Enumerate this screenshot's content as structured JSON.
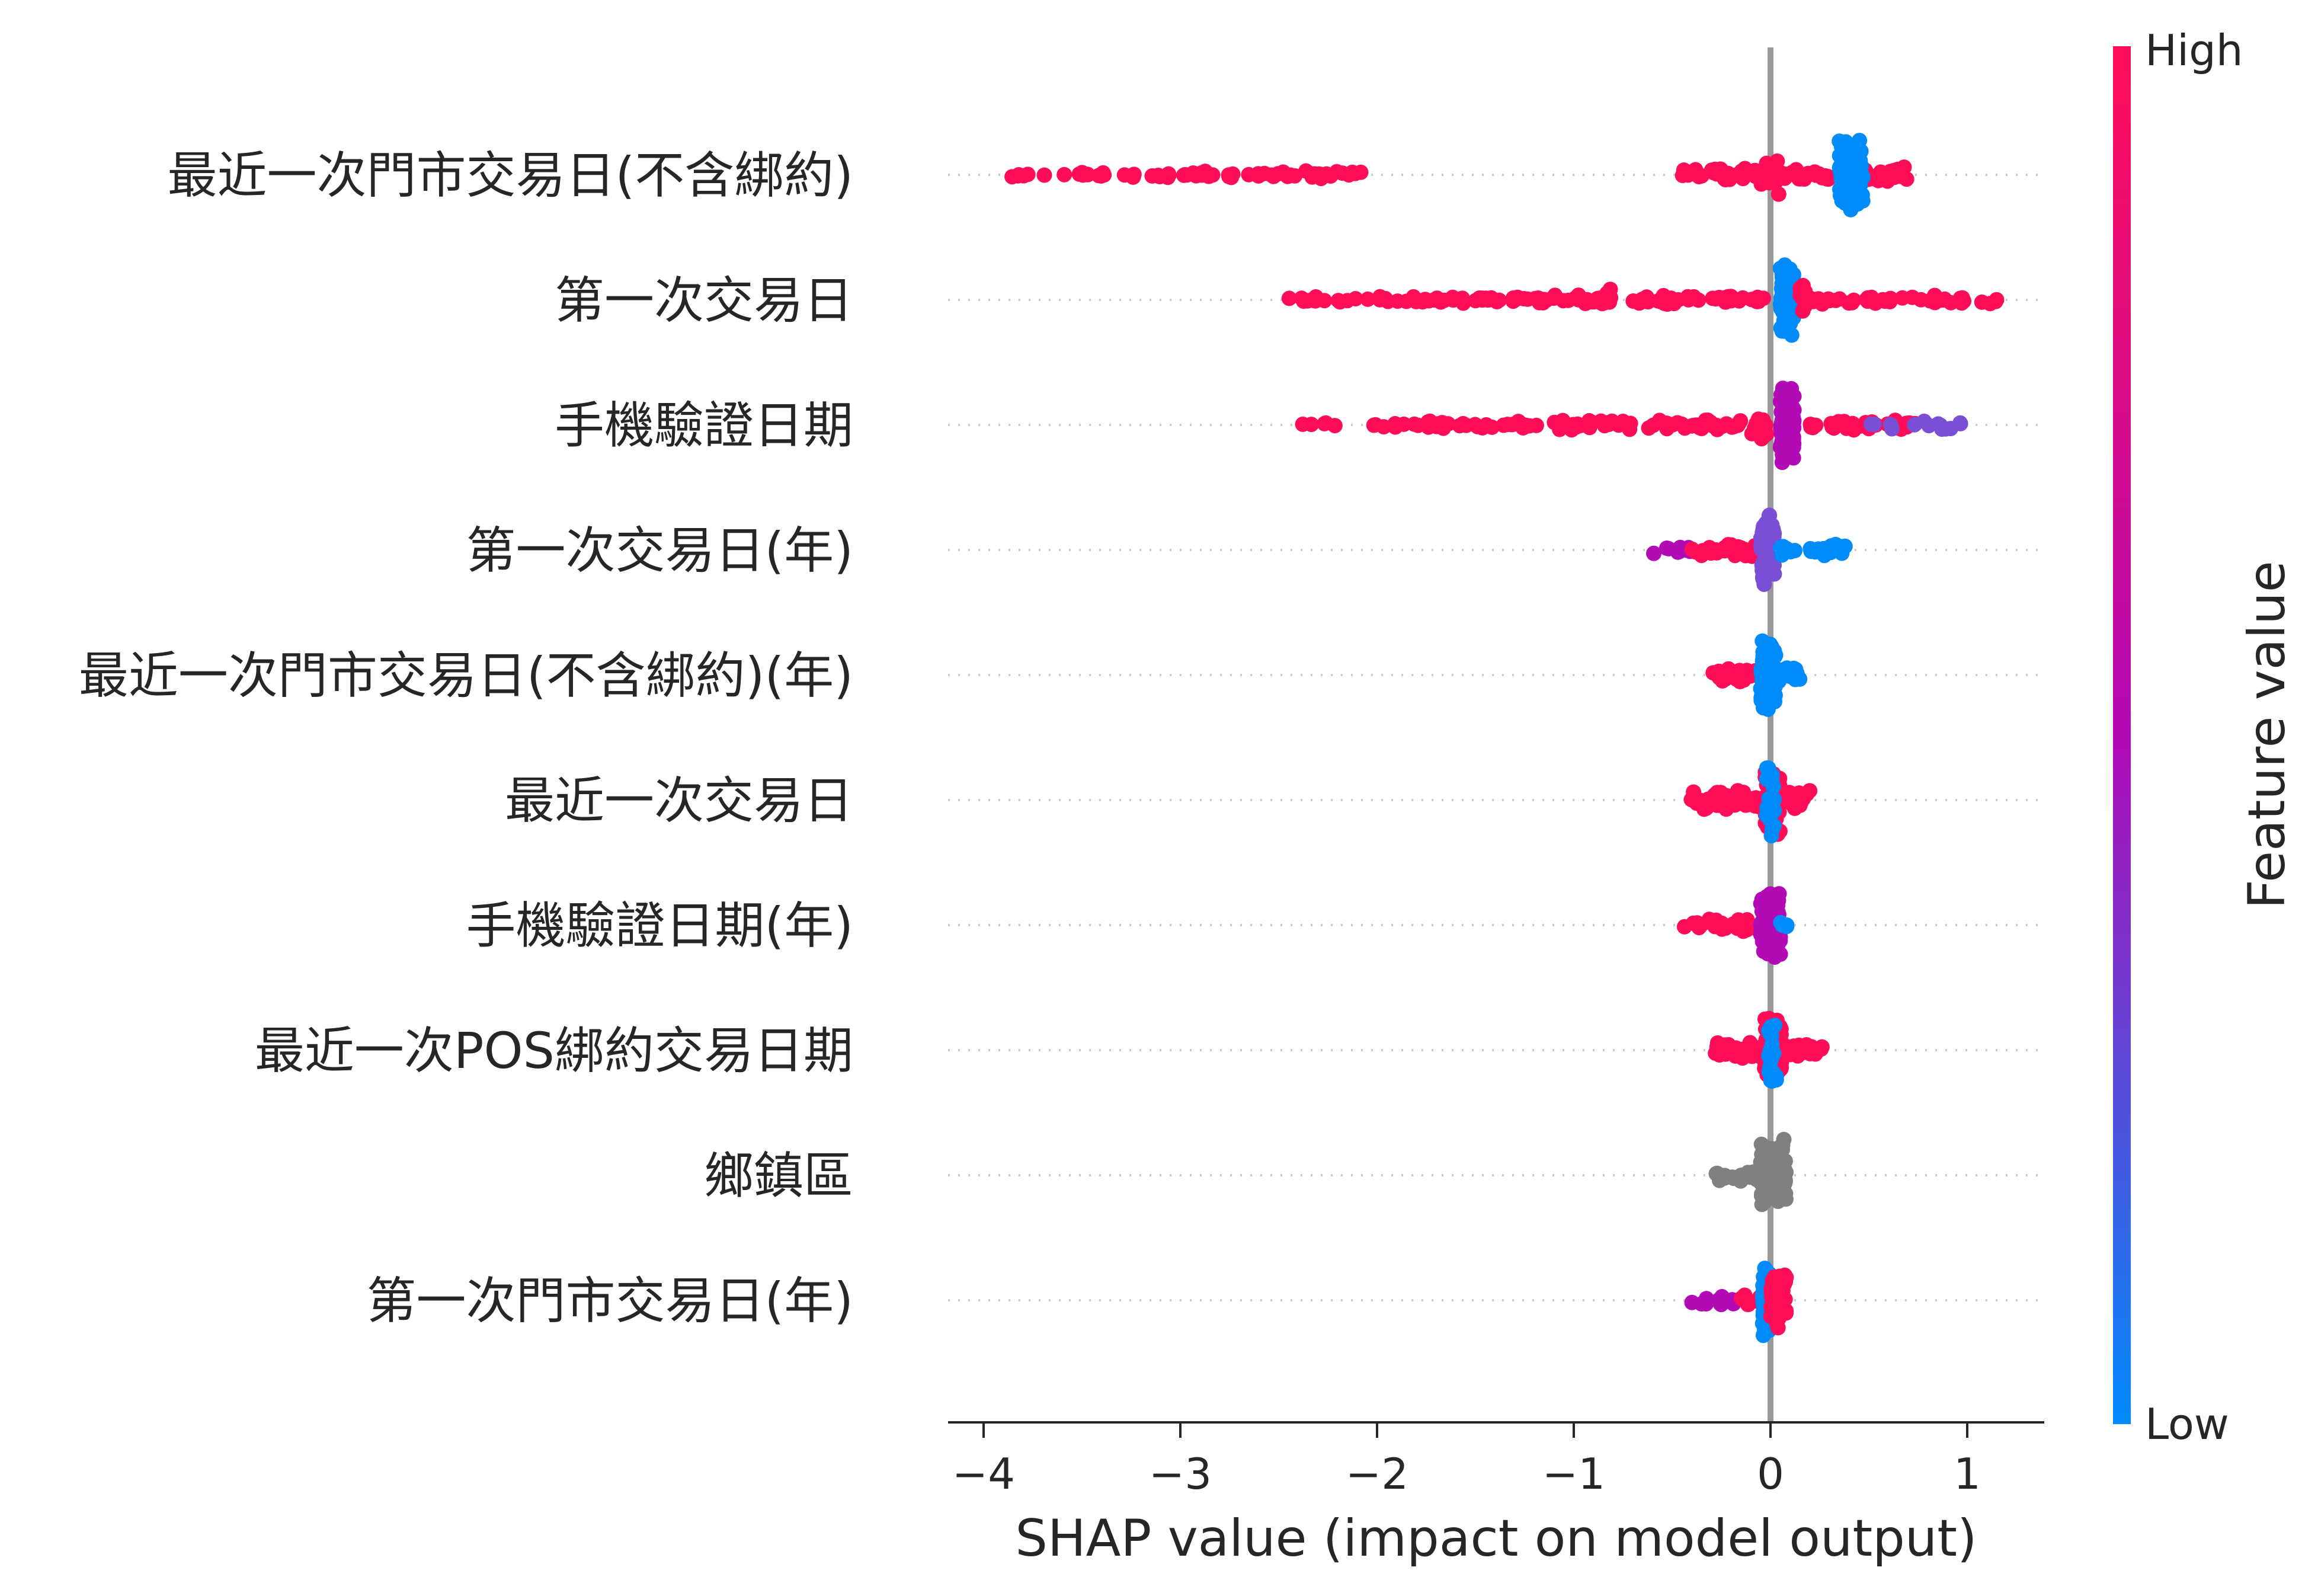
{
  "chart_data": {
    "type": "scatter",
    "subtype": "shap-beeswarm",
    "xlabel": "SHAP value (impact on model output)",
    "x_ticks": [
      -4,
      -3,
      -2,
      -1,
      0,
      1
    ],
    "x_tick_labels": [
      "−4",
      "−3",
      "−2",
      "−1",
      "0",
      "1"
    ],
    "xlim": [
      -4.2,
      1.4
    ],
    "colorbar": {
      "label": "Feature value",
      "high_label": "High",
      "low_label": "Low",
      "high_color": "#ff0d57",
      "mid_color": "#b20ab5",
      "low_color": "#008bfb"
    },
    "missing_value_color": "#808080",
    "zero_line_color": "#999999",
    "features": [
      {
        "name": "最近一次門市交易日(不含綁約)",
        "clusters": [
          {
            "x_min": -3.95,
            "x_max": -3.4,
            "count": 14,
            "color": "high",
            "spread": 0.25
          },
          {
            "x_min": -3.4,
            "x_max": -2.05,
            "count": 60,
            "color": "high",
            "spread": 0.35
          },
          {
            "x_min": -0.45,
            "x_max": 0.3,
            "count": 60,
            "color": "high",
            "spread": 0.55
          },
          {
            "x_min": -0.05,
            "x_max": 0.05,
            "count": 18,
            "color": "high",
            "spread": 1.6
          },
          {
            "x_min": 0.35,
            "x_max": 0.7,
            "count": 30,
            "color": "high",
            "spread": 0.7
          },
          {
            "x_min": 0.35,
            "x_max": 0.47,
            "count": 120,
            "color": "low",
            "spread": 2.8
          }
        ]
      },
      {
        "name": "第一次交易日",
        "clusters": [
          {
            "x_min": -2.45,
            "x_max": -1.2,
            "count": 50,
            "color": "high",
            "spread": 0.3
          },
          {
            "x_min": -1.2,
            "x_max": 0.0,
            "count": 70,
            "color": "high",
            "spread": 0.4
          },
          {
            "x_min": -0.9,
            "x_max": -0.75,
            "count": 6,
            "color": "high",
            "spread": 1.0
          },
          {
            "x_min": 0.1,
            "x_max": 1.15,
            "count": 45,
            "color": "high",
            "spread": 0.4
          },
          {
            "x_min": 0.05,
            "x_max": 0.12,
            "count": 110,
            "color": "low",
            "spread": 3.0
          },
          {
            "x_min": 0.15,
            "x_max": 0.2,
            "count": 12,
            "color": "high",
            "spread": 1.5
          }
        ]
      },
      {
        "name": "手機驗證日期",
        "clusters": [
          {
            "x_min": -2.4,
            "x_max": -1.1,
            "count": 40,
            "color": "high",
            "spread": 0.3
          },
          {
            "x_min": -1.1,
            "x_max": -0.05,
            "count": 60,
            "color": "high",
            "spread": 0.45
          },
          {
            "x_min": -0.1,
            "x_max": 0.0,
            "count": 12,
            "color": "high",
            "spread": 1.4
          },
          {
            "x_min": 0.05,
            "x_max": 0.12,
            "count": 110,
            "color": "mid",
            "spread": 3.0
          },
          {
            "x_min": 0.15,
            "x_max": 0.75,
            "count": 40,
            "color": "high",
            "spread": 0.45
          },
          {
            "x_min": 0.45,
            "x_max": 1.05,
            "count": 14,
            "color": "midlow",
            "spread": 0.35
          }
        ]
      },
      {
        "name": "第一次交易日(年)",
        "clusters": [
          {
            "x_min": -0.6,
            "x_max": -0.4,
            "count": 10,
            "color": "mid",
            "spread": 0.4
          },
          {
            "x_min": -0.4,
            "x_max": -0.05,
            "count": 30,
            "color": "high",
            "spread": 0.55
          },
          {
            "x_min": -0.05,
            "x_max": 0.02,
            "count": 90,
            "color": "midlow",
            "spread": 3.0
          },
          {
            "x_min": 0.05,
            "x_max": 0.38,
            "count": 30,
            "color": "low",
            "spread": 0.5
          }
        ]
      },
      {
        "name": "最近一次門市交易日(不含綁約)(年)",
        "clusters": [
          {
            "x_min": -0.3,
            "x_max": -0.05,
            "count": 25,
            "color": "high",
            "spread": 0.6
          },
          {
            "x_min": -0.05,
            "x_max": 0.03,
            "count": 80,
            "color": "low",
            "spread": 3.0
          },
          {
            "x_min": 0.03,
            "x_max": 0.15,
            "count": 15,
            "color": "low",
            "spread": 0.7
          }
        ]
      },
      {
        "name": "最近一次交易日",
        "clusters": [
          {
            "x_min": -0.42,
            "x_max": -0.05,
            "count": 45,
            "color": "high",
            "spread": 0.8
          },
          {
            "x_min": -0.03,
            "x_max": 0.05,
            "count": 80,
            "color": "high",
            "spread": 3.0
          },
          {
            "x_min": 0.05,
            "x_max": 0.2,
            "count": 20,
            "color": "high",
            "spread": 0.8
          },
          {
            "x_min": -0.02,
            "x_max": 0.02,
            "count": 20,
            "color": "low",
            "spread": 3.0
          }
        ]
      },
      {
        "name": "手機驗證日期(年)",
        "clusters": [
          {
            "x_min": -0.45,
            "x_max": -0.35,
            "count": 4,
            "color": "high",
            "spread": 0.3
          },
          {
            "x_min": -0.35,
            "x_max": -0.05,
            "count": 25,
            "color": "high",
            "spread": 0.6
          },
          {
            "x_min": -0.05,
            "x_max": 0.05,
            "count": 80,
            "color": "mid",
            "spread": 3.0
          },
          {
            "x_min": 0.05,
            "x_max": 0.1,
            "count": 8,
            "color": "low",
            "spread": 0.4
          }
        ]
      },
      {
        "name": "最近一次POS綁約交易日期",
        "clusters": [
          {
            "x_min": -0.28,
            "x_max": 0.28,
            "count": 70,
            "color": "high",
            "spread": 0.7
          },
          {
            "x_min": -0.03,
            "x_max": 0.06,
            "count": 80,
            "color": "high",
            "spread": 3.0
          },
          {
            "x_min": -0.01,
            "x_max": 0.03,
            "count": 20,
            "color": "low",
            "spread": 3.0
          }
        ]
      },
      {
        "name": "鄉鎮區",
        "clusters": [
          {
            "x_min": -0.28,
            "x_max": -0.05,
            "count": 25,
            "color": "missing",
            "spread": 0.5
          },
          {
            "x_min": -0.05,
            "x_max": 0.08,
            "count": 120,
            "color": "missing",
            "spread": 3.0
          }
        ]
      },
      {
        "name": "第一次門市交易日(年)",
        "clusters": [
          {
            "x_min": -0.42,
            "x_max": -0.15,
            "count": 12,
            "color": "mid",
            "spread": 0.45
          },
          {
            "x_min": -0.15,
            "x_max": -0.03,
            "count": 10,
            "color": "high",
            "spread": 0.6
          },
          {
            "x_min": -0.04,
            "x_max": 0.0,
            "count": 70,
            "color": "low",
            "spread": 3.0
          },
          {
            "x_min": 0.0,
            "x_max": 0.08,
            "count": 50,
            "color": "high",
            "spread": 2.6
          }
        ]
      }
    ]
  }
}
